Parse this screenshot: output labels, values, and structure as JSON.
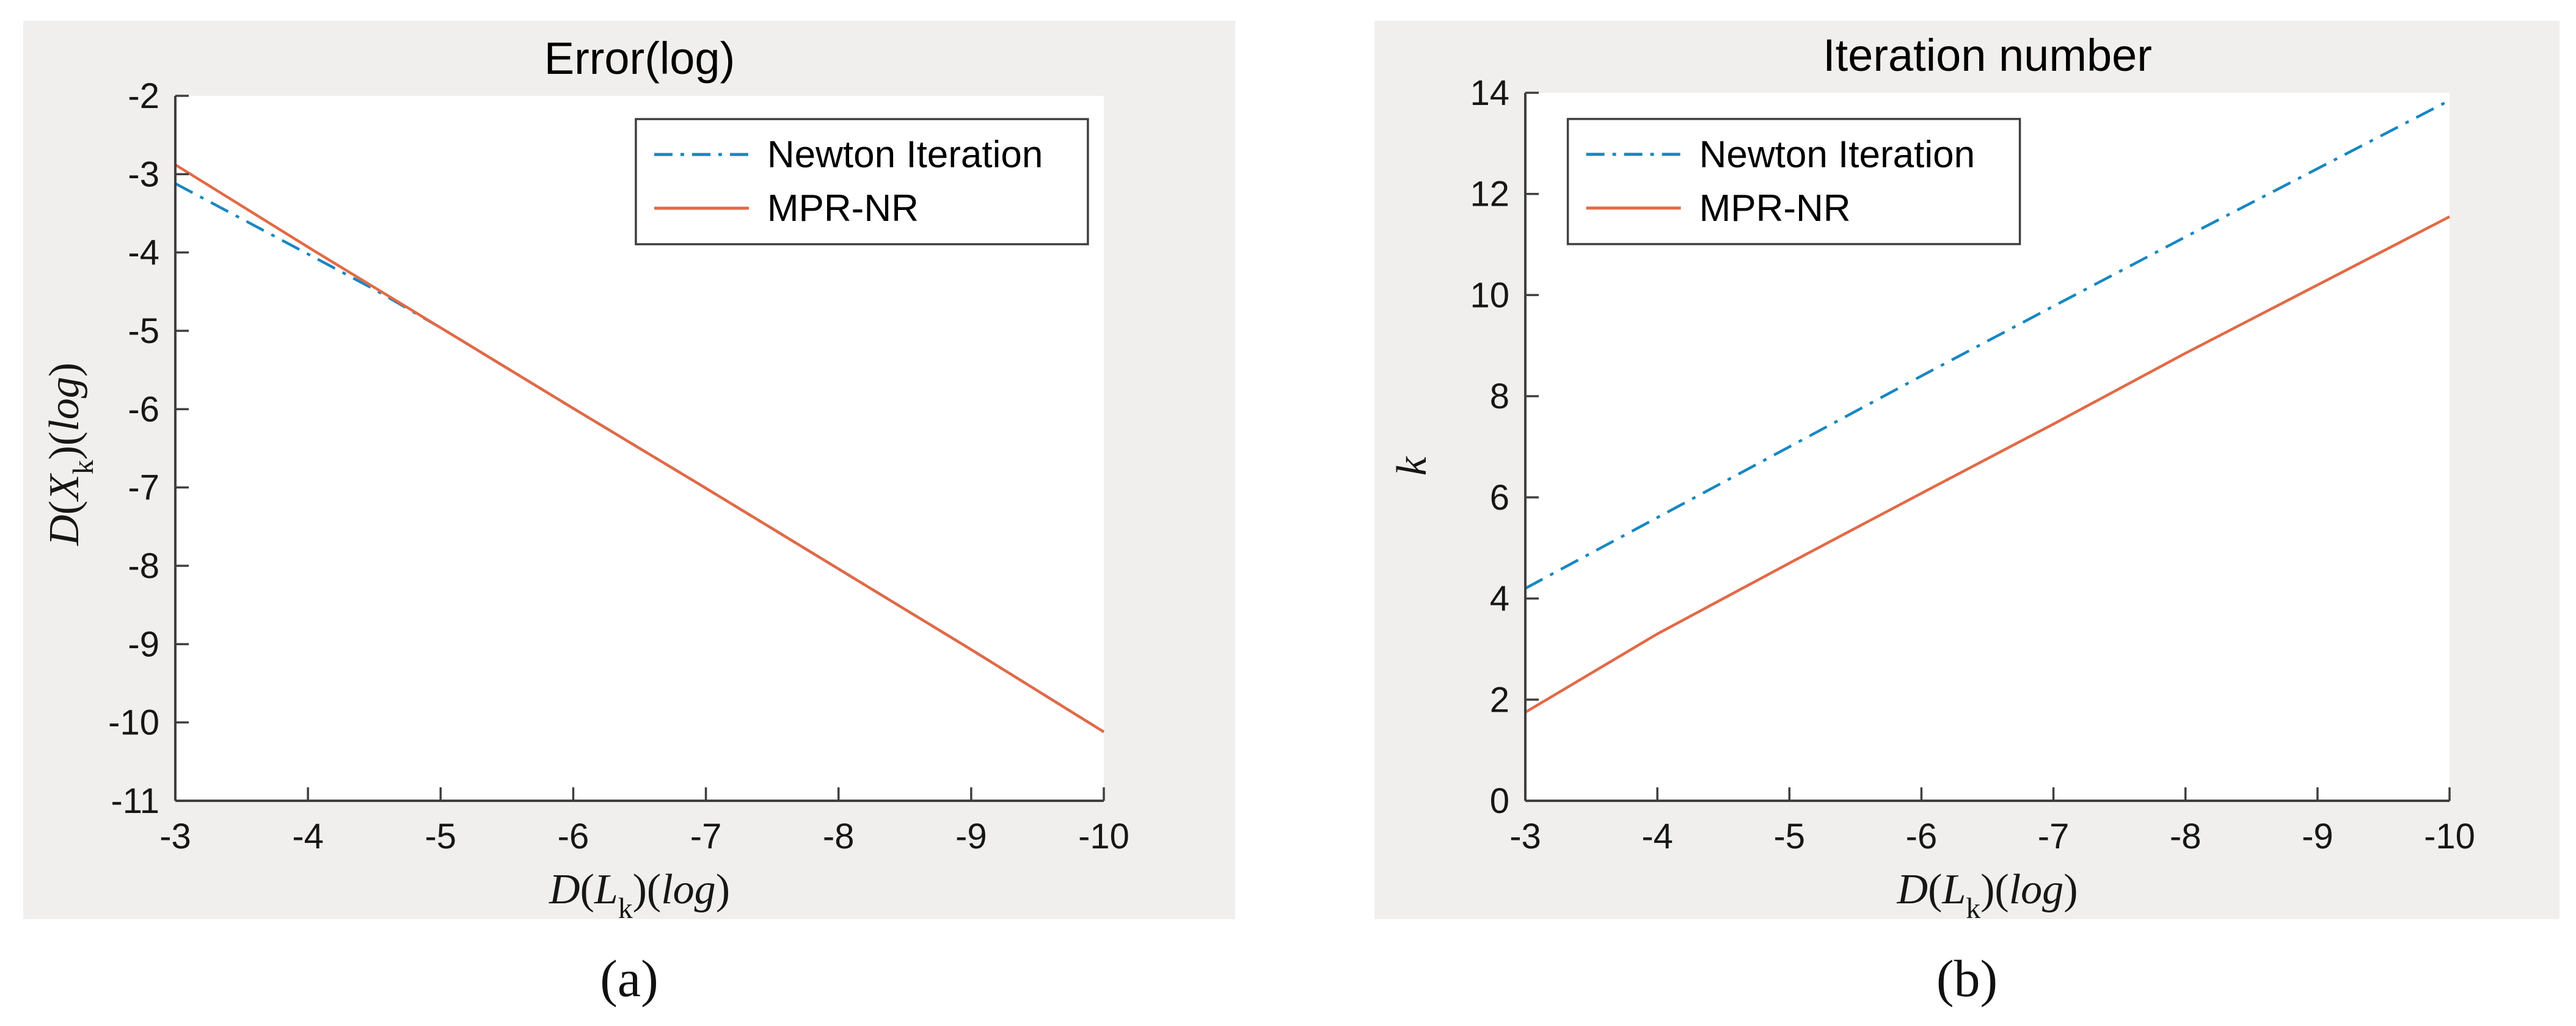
{
  "page": {
    "background": "#ffffff",
    "panel_background": "#f0efee",
    "axis_color": "#3f3f3f",
    "text_color": "#161616"
  },
  "palette": {
    "newton_blue": "#1887c2",
    "mpr_orange": "#e16a46",
    "legend_border": "#3f3f3f",
    "plot_background": "#ffffff"
  },
  "legend_labels": [
    "Newton Iteration",
    "MPR-NR"
  ],
  "chart_data": [
    {
      "id": "error-log",
      "type": "line",
      "title": "Error(log)",
      "caption": "(a)",
      "xlim": [
        -3,
        -10
      ],
      "ylim_top_bottom": [
        -2,
        -11
      ],
      "x_ticks": [
        -3,
        -4,
        -5,
        -6,
        -7,
        -8,
        -9,
        -10
      ],
      "y_ticks": [
        -2,
        -3,
        -4,
        -5,
        -6,
        -7,
        -8,
        -9,
        -10,
        -11
      ],
      "grid": false,
      "xlabel_segments": [
        {
          "t": "D",
          "italic": true
        },
        {
          "t": "("
        },
        {
          "t": "L",
          "italic": true
        },
        {
          "t": "k",
          "sub": true
        },
        {
          "t": ")("
        },
        {
          "t": "log",
          "italic": true
        },
        {
          "t": ")"
        }
      ],
      "ylabel_segments": [
        {
          "t": "D",
          "italic": true
        },
        {
          "t": "("
        },
        {
          "t": "X",
          "italic": true
        },
        {
          "t": "k",
          "sub": true
        },
        {
          "t": ")("
        },
        {
          "t": "log",
          "italic": true
        },
        {
          "t": ")"
        }
      ],
      "legend": {
        "fx": 0.496,
        "fy": 0.033,
        "items": [
          "Newton Iteration",
          "MPR-NR"
        ]
      },
      "series": [
        {
          "name": "Newton Iteration",
          "color_key": "newton_blue",
          "line_style": "dashdot",
          "points": [
            [
              -3,
              -3.12
            ],
            [
              -4,
              -4.02
            ],
            [
              -4.5,
              -4.47
            ],
            [
              -5,
              -4.96
            ],
            [
              -6,
              -5.99
            ],
            [
              -7,
              -7.01
            ],
            [
              -8,
              -8.04
            ],
            [
              -9,
              -9.07
            ],
            [
              -10,
              -10.12
            ]
          ]
        },
        {
          "name": "MPR-NR",
          "color_key": "mpr_orange",
          "line_style": "solid",
          "points": [
            [
              -3,
              -2.88
            ],
            [
              -4,
              -3.93
            ],
            [
              -5,
              -4.96
            ],
            [
              -6,
              -5.99
            ],
            [
              -7,
              -7.01
            ],
            [
              -8,
              -8.04
            ],
            [
              -9,
              -9.07
            ],
            [
              -10,
              -10.12
            ]
          ]
        }
      ]
    },
    {
      "id": "iteration-number",
      "type": "line",
      "title": "Iteration number",
      "caption": "(b)",
      "xlim": [
        -3,
        -10
      ],
      "ylim_top_bottom": [
        14,
        0
      ],
      "x_ticks": [
        -3,
        -4,
        -5,
        -6,
        -7,
        -8,
        -9,
        -10
      ],
      "y_ticks": [
        14,
        12,
        10,
        8,
        6,
        4,
        2,
        0
      ],
      "grid": false,
      "xlabel_segments": [
        {
          "t": "D",
          "italic": true
        },
        {
          "t": "("
        },
        {
          "t": "L",
          "italic": true
        },
        {
          "t": "k",
          "sub": true
        },
        {
          "t": ")("
        },
        {
          "t": "log",
          "italic": true
        },
        {
          "t": ")"
        }
      ],
      "ylabel_segments": [
        {
          "t": "k",
          "italic": true
        }
      ],
      "legend": {
        "fx": 0.046,
        "fy": 0.037,
        "items": [
          "Newton Iteration",
          "MPR-NR"
        ]
      },
      "series": [
        {
          "name": "Newton Iteration",
          "color_key": "newton_blue",
          "line_style": "dashdot",
          "points": [
            [
              -3,
              4.2
            ],
            [
              -4,
              5.6
            ],
            [
              -5,
              7.0
            ],
            [
              -6,
              8.4
            ],
            [
              -7,
              9.78
            ],
            [
              -8,
              11.15
            ],
            [
              -9,
              12.5
            ],
            [
              -10,
              13.85
            ]
          ]
        },
        {
          "name": "MPR-NR",
          "color_key": "mpr_orange",
          "line_style": "solid",
          "points": [
            [
              -3,
              1.75
            ],
            [
              -4,
              3.3
            ],
            [
              -5,
              4.7
            ],
            [
              -6,
              6.08
            ],
            [
              -7,
              7.45
            ],
            [
              -8,
              8.85
            ],
            [
              -9,
              10.2
            ],
            [
              -10,
              11.55
            ]
          ]
        }
      ]
    }
  ]
}
